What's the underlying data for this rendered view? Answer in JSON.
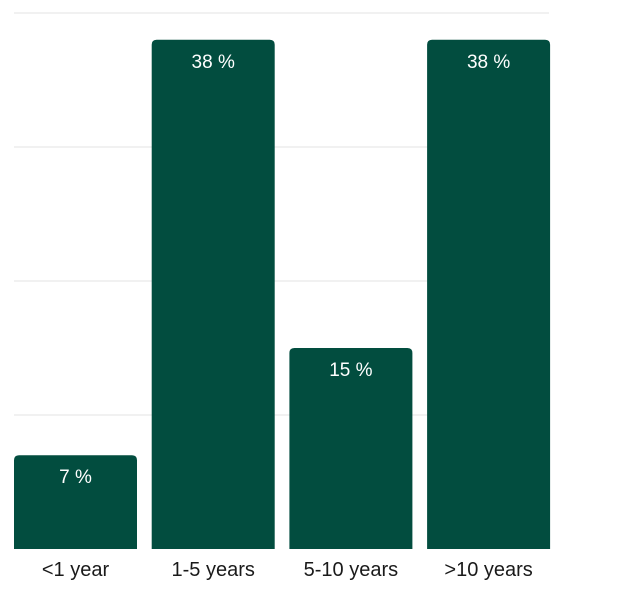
{
  "chart_data": {
    "type": "bar",
    "title": "",
    "xlabel": "",
    "ylabel": "",
    "categories": [
      "<1 year",
      "1-5 years",
      "5-10 years",
      ">10 years"
    ],
    "values": [
      7,
      38,
      15,
      38
    ],
    "value_labels": [
      "7 %",
      "38 %",
      "15 %",
      "38 %"
    ],
    "ylim": [
      0,
      40
    ],
    "grid": true,
    "legend": "none",
    "colors": {
      "bar": "#024D3F",
      "grid": "#E3E3E3",
      "value_label": "#FFFFFF",
      "tick_label": "#1A1A1A"
    }
  }
}
